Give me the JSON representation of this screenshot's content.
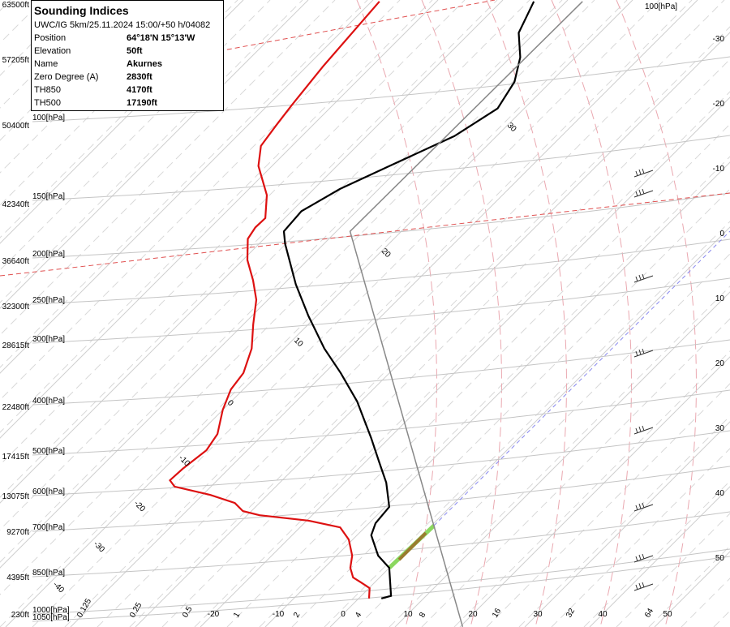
{
  "info_box": {
    "title": "Sounding Indices",
    "model": "UWC/IG 5km/25.11.2024 15:00/+50 h/04082",
    "rows": [
      [
        "Position",
        "64°18'N 15°13'W"
      ],
      [
        "Elevation",
        "50ft"
      ],
      [
        "Name",
        "Akurnes"
      ],
      [
        "Zero Degree (A)",
        "2830ft"
      ],
      [
        "TH850",
        "4170ft"
      ],
      [
        "TH500",
        "17190ft"
      ]
    ]
  },
  "altitude_labels": [
    "63500ft",
    "57205ft",
    "50400ft",
    "42340ft",
    "36640ft",
    "32300ft",
    "28615ft",
    "22480ft",
    "17415ft",
    "13075ft",
    "9270ft",
    "4395ft",
    "230ft"
  ],
  "pressure_labels": [
    "100[hPa]",
    "150[hPa]",
    "200[hPa]",
    "250[hPa]",
    "300[hPa]",
    "400[hPa]",
    "500[hPa]",
    "600[hPa]",
    "700[hPa]",
    "850[hPa]",
    "1000[hPa]",
    "1050[hPa]"
  ],
  "isotherms": [
    -30,
    -20,
    -10,
    0,
    10,
    20,
    30,
    40,
    50
  ],
  "adiabat_labels": [
    30,
    20,
    10,
    0,
    -10,
    -20,
    -30,
    -40
  ],
  "mixing_ratio_labels": [
    0.125,
    0.25,
    0.5,
    1,
    2,
    4,
    8,
    16,
    32,
    64
  ],
  "sounding": {
    "temperature": {
      "pressure": [
        930,
        919,
        806,
        761,
        692,
        654,
        606,
        541,
        492,
        439,
        370,
        324,
        289,
        248,
        214,
        177,
        167,
        152,
        137,
        123,
        107,
        94,
        83,
        74,
        66,
        57
      ],
      "values": [
        3.5,
        4.6,
        0,
        -3.6,
        -7.8,
        -9,
        -9.4,
        -13.6,
        -17.8,
        -22.8,
        -30.6,
        -37.5,
        -43.8,
        -51.3,
        -58.1,
        -66,
        -68.1,
        -68.5,
        -66,
        -61.9,
        -56.5,
        -54.1,
        -55.6,
        -58.5,
        -62.5,
        -65
      ],
      "color": "#000000"
    },
    "dewpoint": {
      "pressure": [
        930,
        886,
        863,
        843,
        806,
        761,
        706,
        667,
        646,
        630,
        618,
        595,
        573,
        551,
        535,
        507,
        465,
        431,
        385,
        350,
        324,
        289,
        258,
        230,
        210,
        191,
        173,
        164,
        157,
        141,
        123,
        112,
        102,
        93,
        77,
        57
      ],
      "values": [
        1.6,
        0.1,
        -2.1,
        -4.1,
        -6,
        -7.6,
        -10.6,
        -13.8,
        -19.8,
        -28.1,
        -31.3,
        -33.8,
        -38.8,
        -45.6,
        -47.3,
        -47.1,
        -46.3,
        -47.1,
        -50,
        -51.9,
        -52.5,
        -55,
        -58.5,
        -61.8,
        -65.3,
        -69.3,
        -72.5,
        -73.1,
        -73,
        -76.3,
        -82.1,
        -84.8,
        -85.6,
        -86.3,
        -87.5,
        -88.8
      ],
      "color": "#dd1111"
    },
    "reference": {
      "pressure": [
        1062,
        167,
        57
      ],
      "values": [
        20.4,
        -57.9,
        -57.5
      ],
      "color": "#888888"
    }
  }
}
